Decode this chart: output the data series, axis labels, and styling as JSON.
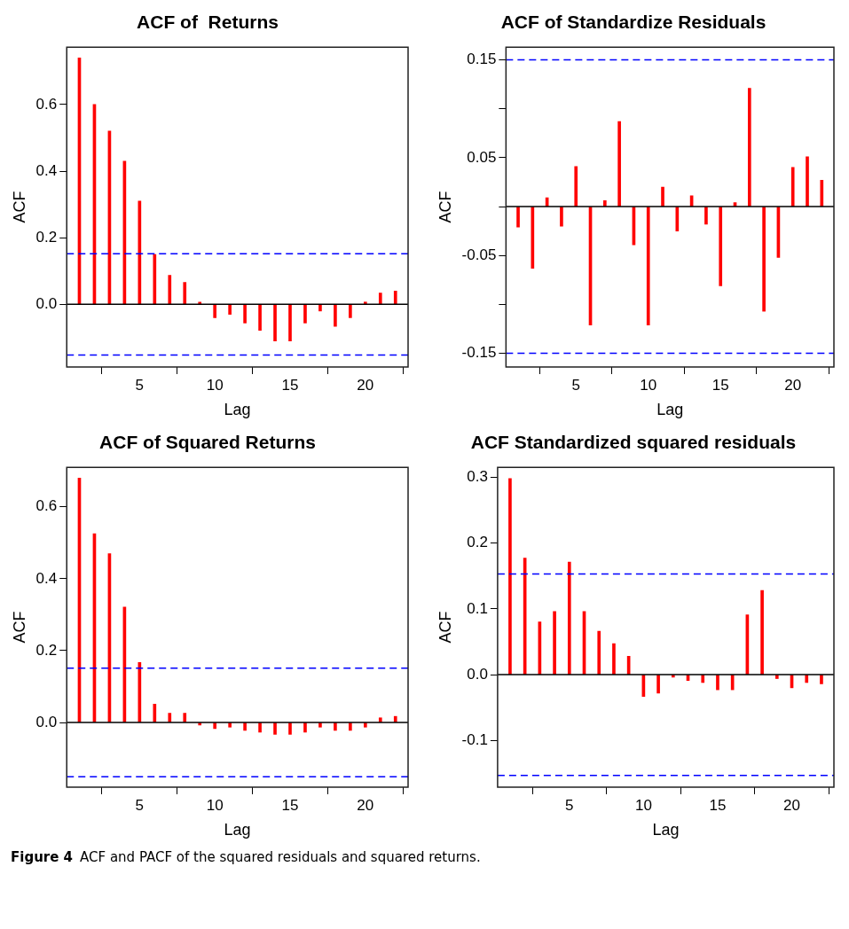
{
  "chart_data": [
    {
      "type": "bar",
      "title": "ACF of  Returns",
      "xlabel": "Lag",
      "ylabel": "ACF",
      "x": [
        1,
        2,
        3,
        4,
        5,
        6,
        7,
        8,
        9,
        10,
        11,
        12,
        13,
        14,
        15,
        16,
        17,
        18,
        19,
        20,
        21,
        22
      ],
      "series": [
        {
          "color": "#ff0000",
          "values": [
            0.74,
            0.6,
            0.52,
            0.43,
            0.31,
            0.15,
            0.087,
            0.066,
            0.007,
            -0.04,
            -0.03,
            -0.056,
            -0.078,
            -0.11,
            -0.11,
            -0.056,
            -0.02,
            -0.066,
            -0.04,
            0.007,
            0.034,
            0.04
          ]
        }
      ],
      "xlim": [
        0.16,
        22.84
      ],
      "xticks": [
        5,
        10,
        15,
        20
      ],
      "ylim": [
        -0.188,
        0.772
      ],
      "yticks": [
        {
          "value": 0,
          "label": "0.0"
        },
        0.2,
        0.4,
        0.6
      ],
      "ref_lines": [
        {
          "axis": "y",
          "value": 0,
          "color": "#000000",
          "line_style": "solid"
        },
        {
          "axis": "y",
          "value": 0.152,
          "color": "#0000ff",
          "line_style": "dashed"
        },
        {
          "axis": "y",
          "value": -0.152,
          "color": "#0000ff",
          "line_style": "dashed"
        }
      ],
      "grid": false,
      "legend": false
    },
    {
      "type": "bar",
      "title": "ACF of Standardize Residuals",
      "xlabel": "Lag",
      "ylabel": "ACF",
      "x": [
        1,
        2,
        3,
        4,
        5,
        6,
        7,
        8,
        9,
        10,
        11,
        12,
        13,
        14,
        15,
        16,
        17,
        18,
        19,
        20,
        21,
        22
      ],
      "series": [
        {
          "color": "#ff0000",
          "values": [
            -0.021,
            -0.063,
            0.009,
            -0.02,
            0.041,
            -0.121,
            0.006,
            0.087,
            -0.039,
            -0.121,
            0.02,
            -0.025,
            0.011,
            -0.018,
            -0.081,
            0.004,
            0.121,
            -0.107,
            -0.052,
            0.04,
            0.051,
            0.027
          ]
        }
      ],
      "xlim": [
        0.16,
        22.84
      ],
      "xticks": [
        5,
        10,
        15,
        20
      ],
      "ylim": [
        -0.164,
        0.163
      ],
      "yticks": [
        -0.15,
        {
          "value": -0.1,
          "label": null
        },
        -0.05,
        {
          "value": 0,
          "label": null
        },
        0.05,
        {
          "value": 0.1,
          "label": null
        },
        0.15
      ],
      "ref_lines": [
        {
          "axis": "y",
          "value": 0,
          "color": "#000000",
          "line_style": "solid"
        },
        {
          "axis": "y",
          "value": 0.15,
          "color": "#0000ff",
          "line_style": "dashed"
        },
        {
          "axis": "y",
          "value": -0.15,
          "color": "#0000ff",
          "line_style": "dashed"
        }
      ],
      "grid": false,
      "legend": false
    },
    {
      "type": "bar",
      "title": "ACF of Squared Returns",
      "xlabel": "Lag",
      "ylabel": "ACF",
      "x": [
        1,
        2,
        3,
        4,
        5,
        6,
        7,
        8,
        9,
        10,
        11,
        12,
        13,
        14,
        15,
        16,
        17,
        18,
        19,
        20,
        21,
        22
      ],
      "series": [
        {
          "color": "#ff0000",
          "values": [
            0.68,
            0.525,
            0.47,
            0.321,
            0.167,
            0.051,
            0.026,
            0.026,
            -0.007,
            -0.017,
            -0.013,
            -0.022,
            -0.027,
            -0.033,
            -0.033,
            -0.027,
            -0.013,
            -0.022,
            -0.022,
            -0.013,
            0.013,
            0.017
          ]
        }
      ],
      "xlim": [
        0.16,
        22.84
      ],
      "xticks": [
        5,
        10,
        15,
        20
      ],
      "ylim": [
        -0.18,
        0.71
      ],
      "yticks": [
        {
          "value": 0,
          "label": "0.0"
        },
        0.2,
        0.4,
        0.6
      ],
      "ref_lines": [
        {
          "axis": "y",
          "value": 0,
          "color": "#000000",
          "line_style": "solid"
        },
        {
          "axis": "y",
          "value": 0.151,
          "color": "#0000ff",
          "line_style": "dashed"
        },
        {
          "axis": "y",
          "value": -0.151,
          "color": "#0000ff",
          "line_style": "dashed"
        }
      ],
      "grid": false,
      "legend": false
    },
    {
      "type": "bar",
      "title": "ACF Standardized squared residuals",
      "xlabel": "Lag",
      "ylabel": "ACF",
      "x": [
        1,
        2,
        3,
        4,
        5,
        6,
        7,
        8,
        9,
        10,
        11,
        12,
        13,
        14,
        15,
        16,
        17,
        18,
        19,
        20,
        21,
        22
      ],
      "series": [
        {
          "color": "#ff0000",
          "values": [
            0.298,
            0.177,
            0.08,
            0.096,
            0.171,
            0.096,
            0.066,
            0.047,
            0.028,
            -0.033,
            -0.028,
            -0.004,
            -0.009,
            -0.012,
            -0.023,
            -0.023,
            0.091,
            0.128,
            -0.006,
            -0.02,
            -0.012,
            -0.014
          ]
        }
      ],
      "xlim": [
        0.16,
        22.84
      ],
      "xticks": [
        5,
        10,
        15,
        20
      ],
      "ylim": [
        -0.171,
        0.315
      ],
      "yticks": [
        -0.1,
        {
          "value": 0,
          "label": "0.0"
        },
        0.1,
        0.2,
        0.3
      ],
      "ref_lines": [
        {
          "axis": "y",
          "value": 0,
          "color": "#000000",
          "line_style": "solid"
        },
        {
          "axis": "y",
          "value": 0.153,
          "color": "#0000ff",
          "line_style": "dashed"
        },
        {
          "axis": "y",
          "value": -0.153,
          "color": "#0000ff",
          "line_style": "dashed"
        }
      ],
      "grid": false,
      "legend": false,
      "annotations": [
        "Figure 4",
        "ACF and PACF of the squared residuals and squared returns."
      ]
    }
  ]
}
